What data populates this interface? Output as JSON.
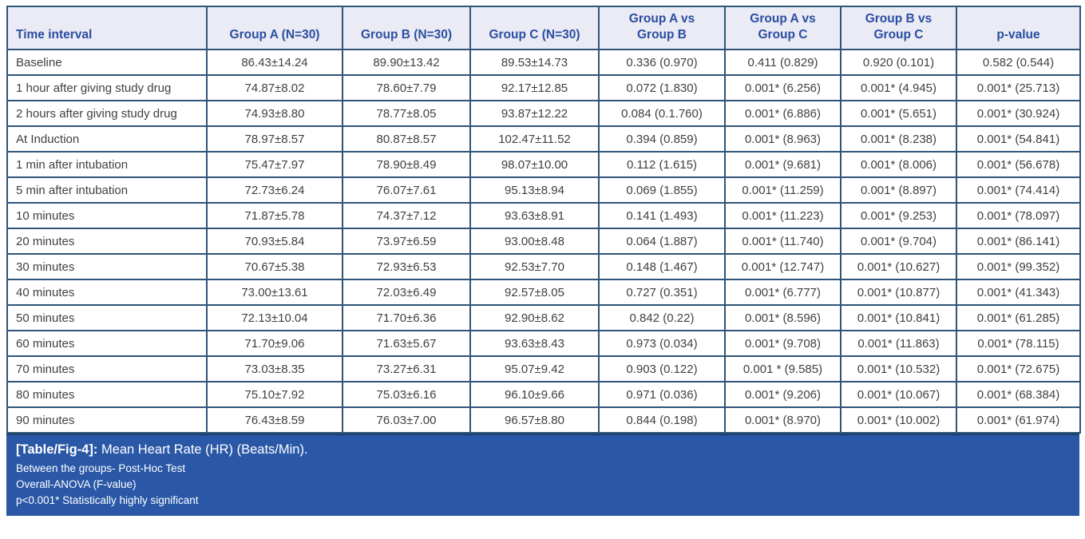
{
  "table": {
    "columns": [
      "Time interval",
      "Group A (N=30)",
      "Group B (N=30)",
      "Group C (N=30)",
      "Group A vs\nGroup B",
      "Group A vs\nGroup C",
      "Group B vs\nGroup C",
      "p-value"
    ],
    "rows": [
      [
        "Baseline",
        "86.43±14.24",
        "89.90±13.42",
        "89.53±14.73",
        "0.336 (0.970)",
        "0.411 (0.829)",
        "0.920 (0.101)",
        "0.582 (0.544)"
      ],
      [
        "1 hour after giving study drug",
        "74.87±8.02",
        "78.60±7.79",
        "92.17±12.85",
        "0.072 (1.830)",
        "0.001* (6.256)",
        "0.001* (4.945)",
        "0.001* (25.713)"
      ],
      [
        "2 hours after giving study drug",
        "74.93±8.80",
        "78.77±8.05",
        "93.87±12.22",
        "0.084 (0.1.760)",
        "0.001* (6.886)",
        "0.001* (5.651)",
        "0.001* (30.924)"
      ],
      [
        "At Induction",
        "78.97±8.57",
        "80.87±8.57",
        "102.47±11.52",
        "0.394 (0.859)",
        "0.001* (8.963)",
        "0.001* (8.238)",
        "0.001* (54.841)"
      ],
      [
        "1 min after intubation",
        "75.47±7.97",
        "78.90±8.49",
        "98.07±10.00",
        "0.112 (1.615)",
        "0.001* (9.681)",
        "0.001* (8.006)",
        "0.001* (56.678)"
      ],
      [
        "5 min after intubation",
        "72.73±6.24",
        "76.07±7.61",
        "95.13±8.94",
        "0.069 (1.855)",
        "0.001* (11.259)",
        "0.001* (8.897)",
        "0.001* (74.414)"
      ],
      [
        "10 minutes",
        "71.87±5.78",
        "74.37±7.12",
        "93.63±8.91",
        "0.141 (1.493)",
        "0.001* (11.223)",
        "0.001* (9.253)",
        "0.001* (78.097)"
      ],
      [
        "20 minutes",
        "70.93±5.84",
        "73.97±6.59",
        "93.00±8.48",
        "0.064 (1.887)",
        "0.001* (11.740)",
        "0.001* (9.704)",
        "0.001* (86.141)"
      ],
      [
        "30 minutes",
        "70.67±5.38",
        "72.93±6.53",
        "92.53±7.70",
        "0.148 (1.467)",
        "0.001* (12.747)",
        "0.001* (10.627)",
        "0.001* (99.352)"
      ],
      [
        "40 minutes",
        "73.00±13.61",
        "72.03±6.49",
        "92.57±8.05",
        "0.727 (0.351)",
        "0.001* (6.777)",
        "0.001* (10.877)",
        "0.001* (41.343)"
      ],
      [
        "50 minutes",
        "72.13±10.04",
        "71.70±6.36",
        "92.90±8.62",
        "0.842 (0.22)",
        "0.001* (8.596)",
        "0.001* (10.841)",
        "0.001* (61.285)"
      ],
      [
        "60 minutes",
        "71.70±9.06",
        "71.63±5.67",
        "93.63±8.43",
        "0.973 (0.034)",
        "0.001* (9.708)",
        "0.001* (11.863)",
        "0.001* (78.115)"
      ],
      [
        "70 minutes",
        "73.03±8.35",
        "73.27±6.31",
        "95.07±9.42",
        "0.903 (0.122)",
        "0.001 * (9.585)",
        "0.001* (10.532)",
        "0.001* (72.675)"
      ],
      [
        "80 minutes",
        "75.10±7.92",
        "75.03±6.16",
        "96.10±9.66",
        "0.971 (0.036)",
        "0.001* (9.206)",
        "0.001* (10.067)",
        "0.001* (68.384)"
      ],
      [
        "90 minutes",
        "76.43±8.59",
        "76.03±7.00",
        "96.57±8.80",
        "0.844 (0.198)",
        "0.001* (8.970)",
        "0.001* (10.002)",
        "0.001* (61.974)"
      ]
    ]
  },
  "caption": {
    "label": "[Table/Fig-4]:",
    "title": "Mean Heart Rate (HR) (Beats/Min).",
    "notes": [
      "Between the groups- Post-Hoc Test",
      "Overall-ANOVA (F-value)",
      "p<0.001* Statistically highly significant"
    ]
  },
  "colors": {
    "border": "#2e5578",
    "header_bg": "#eaebf4",
    "header_text": "#2b4da1",
    "body_text": "#3f3f3f",
    "caption_bg": "#2a58a7",
    "caption_text": "#ffffff"
  }
}
